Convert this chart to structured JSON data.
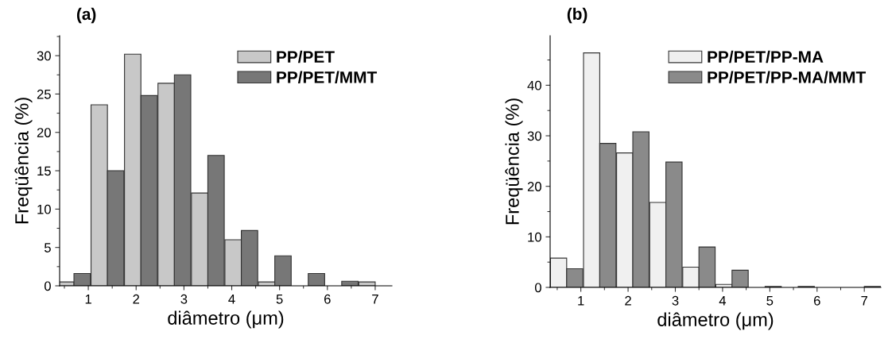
{
  "chart_data": [
    {
      "type": "bar",
      "title": "(a)",
      "xlabel": "diâmetro (μm)",
      "ylabel": "Freqüência (%)",
      "x": [
        0.7,
        1.4,
        2.1,
        2.8,
        3.5,
        4.2,
        4.9,
        5.6,
        6.3,
        7.0
      ],
      "series": [
        {
          "name": "PP/PET",
          "color": "#c8c8c8",
          "values": [
            0.5,
            23.6,
            30.2,
            26.4,
            12.1,
            6.0,
            0.5,
            null,
            null,
            0.5
          ]
        },
        {
          "name": "PP/PET/MMT",
          "color": "#777777",
          "values": [
            1.6,
            15.0,
            24.8,
            27.5,
            17.0,
            7.2,
            3.9,
            1.6,
            0.6,
            null
          ]
        }
      ],
      "xlim": [
        0.4,
        7.35
      ],
      "xticks": [
        1,
        2,
        3,
        4,
        5,
        6,
        7
      ],
      "ylim": [
        0,
        32.6
      ],
      "yticks": [
        0,
        5,
        10,
        15,
        20,
        25,
        30
      ],
      "legend": "top right",
      "grid": false
    },
    {
      "type": "bar",
      "title": "(b)",
      "xlabel": "diâmetro (μm)",
      "ylabel": "Freqüência (%)",
      "x": [
        0.7,
        1.4,
        2.1,
        2.8,
        3.5,
        4.2,
        4.9,
        5.6,
        6.3,
        7.0
      ],
      "series": [
        {
          "name": "PP/PET/PP-MA",
          "color": "#f0f0f0",
          "values": [
            5.8,
            46.4,
            26.6,
            16.8,
            4.0,
            0.6,
            null,
            null,
            null,
            null
          ]
        },
        {
          "name": "PP/PET/PP-MA/MMT",
          "color": "#8a8a8a",
          "values": [
            3.7,
            28.5,
            30.8,
            24.8,
            8.0,
            3.4,
            0.2,
            0.2,
            null,
            0.2
          ]
        }
      ],
      "xlim": [
        0.35,
        7.35
      ],
      "xticks": [
        1,
        2,
        3,
        4,
        5,
        6,
        7
      ],
      "ylim": [
        0,
        49.8
      ],
      "yticks": [
        0,
        10,
        20,
        30,
        40
      ],
      "legend": "top right",
      "grid": false
    }
  ]
}
